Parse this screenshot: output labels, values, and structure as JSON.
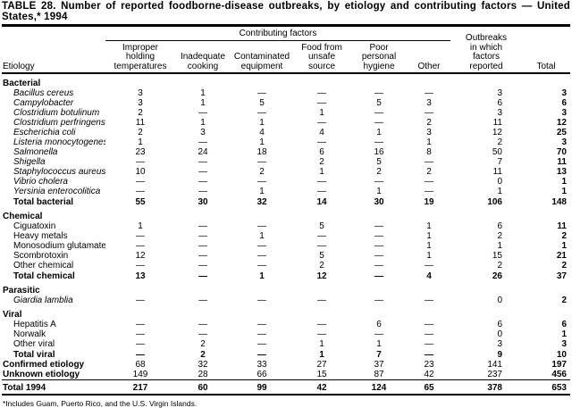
{
  "title": {
    "line1": "TABLE 28. Number of reported foodborne-disease outbreaks, by etiology and contributing factors — United",
    "line2": "States,* 1994"
  },
  "table": {
    "etiology_header": "Etiology",
    "contributing_factors_label": "Contributing factors",
    "factor_columns": [
      "Improper\nholding\ntemperatures",
      "Inadequate\ncooking",
      "Contaminated\nequipment",
      "Food from\nunsafe\nsource",
      "Poor\npersonal\nhygiene",
      "Other"
    ],
    "outbreaks_header": "Outbreaks\nin which\nfactors\nreported",
    "total_header": "Total",
    "rows": [
      {
        "type": "section",
        "label": "Bacterial"
      },
      {
        "type": "item",
        "italic": true,
        "label": "Bacillus cereus",
        "values": [
          "3",
          "1",
          "—",
          "—",
          "—",
          "—",
          "3",
          "3"
        ]
      },
      {
        "type": "item",
        "italic": true,
        "label": "Campylobacter",
        "values": [
          "3",
          "1",
          "5",
          "—",
          "5",
          "3",
          "6",
          "6"
        ]
      },
      {
        "type": "item",
        "italic": true,
        "label": "Clostridium botulinum",
        "values": [
          "2",
          "—",
          "—",
          "1",
          "—",
          "—",
          "3",
          "3"
        ]
      },
      {
        "type": "item",
        "italic": true,
        "label": "Clostridium perfringens",
        "values": [
          "11",
          "1",
          "1",
          "—",
          "—",
          "2",
          "11",
          "12"
        ]
      },
      {
        "type": "item",
        "italic": true,
        "label": "Escherichia coli",
        "values": [
          "2",
          "3",
          "4",
          "4",
          "1",
          "3",
          "12",
          "25"
        ]
      },
      {
        "type": "item",
        "italic": true,
        "label": "Listeria monocytogenes",
        "values": [
          "1",
          "—",
          "1",
          "—",
          "—",
          "1",
          "2",
          "3"
        ]
      },
      {
        "type": "item",
        "italic": true,
        "label": "Salmonella",
        "values": [
          "23",
          "24",
          "18",
          "6",
          "16",
          "8",
          "50",
          "70"
        ]
      },
      {
        "type": "item",
        "italic": true,
        "label": "Shigella",
        "values": [
          "—",
          "—",
          "—",
          "2",
          "5",
          "—",
          "7",
          "11"
        ]
      },
      {
        "type": "item",
        "italic": true,
        "label": "Staphylococcus aureus",
        "values": [
          "10",
          "—",
          "2",
          "1",
          "2",
          "2",
          "11",
          "13"
        ]
      },
      {
        "type": "item",
        "italic": true,
        "label": "Vibrio cholera",
        "values": [
          "—",
          "—",
          "—",
          "—",
          "—",
          "—",
          "0",
          "1"
        ]
      },
      {
        "type": "item",
        "italic": true,
        "label": "Yersinia enterocolitica",
        "values": [
          "—",
          "—",
          "1",
          "—",
          "1",
          "—",
          "1",
          "1"
        ]
      },
      {
        "type": "total",
        "label": "Total bacterial",
        "values": [
          "55",
          "30",
          "32",
          "14",
          "30",
          "19",
          "106",
          "148"
        ]
      },
      {
        "type": "section",
        "label": "Chemical"
      },
      {
        "type": "item",
        "italic": false,
        "label": "Ciguatoxin",
        "values": [
          "1",
          "—",
          "—",
          "5",
          "—",
          "1",
          "6",
          "11"
        ]
      },
      {
        "type": "item",
        "italic": false,
        "label": "Heavy metals",
        "values": [
          "—",
          "—",
          "1",
          "—",
          "—",
          "1",
          "2",
          "2"
        ]
      },
      {
        "type": "item",
        "italic": false,
        "label": "Monosodium glutamate",
        "values": [
          "—",
          "—",
          "—",
          "—",
          "—",
          "1",
          "1",
          "1"
        ]
      },
      {
        "type": "item",
        "italic": false,
        "label": "Scombrotoxin",
        "values": [
          "12",
          "—",
          "—",
          "5",
          "—",
          "1",
          "15",
          "21"
        ]
      },
      {
        "type": "item",
        "italic": false,
        "label": "Other chemical",
        "values": [
          "—",
          "—",
          "—",
          "2",
          "—",
          "—",
          "2",
          "2"
        ]
      },
      {
        "type": "total",
        "label": "Total chemical",
        "values": [
          "13",
          "—",
          "1",
          "12",
          "—",
          "4",
          "26",
          "37"
        ]
      },
      {
        "type": "section",
        "label": "Parasitic"
      },
      {
        "type": "item",
        "italic": true,
        "label": "Giardia lamblia",
        "values": [
          "—",
          "—",
          "—",
          "—",
          "—",
          "—",
          "0",
          "2"
        ]
      },
      {
        "type": "section",
        "label": "Viral"
      },
      {
        "type": "item",
        "italic": false,
        "label": "Hepatitis A",
        "values": [
          "—",
          "—",
          "—",
          "—",
          "6",
          "—",
          "6",
          "6"
        ]
      },
      {
        "type": "item",
        "italic": false,
        "label": "Norwalk",
        "values": [
          "—",
          "—",
          "—",
          "—",
          "—",
          "—",
          "0",
          "1"
        ]
      },
      {
        "type": "item",
        "italic": false,
        "label": "Other viral",
        "values": [
          "—",
          "2",
          "—",
          "1",
          "1",
          "—",
          "3",
          "3"
        ]
      },
      {
        "type": "total",
        "label": "Total viral",
        "values": [
          "—",
          "2",
          "—",
          "1",
          "7",
          "—",
          "9",
          "10"
        ]
      },
      {
        "type": "summary",
        "label": "Confirmed etiology",
        "values": [
          "68",
          "32",
          "33",
          "27",
          "37",
          "23",
          "141",
          "197"
        ]
      },
      {
        "type": "summary",
        "label": "Unknown etiology",
        "values": [
          "149",
          "28",
          "66",
          "15",
          "87",
          "42",
          "237",
          "456"
        ]
      },
      {
        "type": "grand",
        "label": "Total 1994",
        "values": [
          "217",
          "60",
          "99",
          "42",
          "124",
          "65",
          "378",
          "653"
        ]
      }
    ]
  },
  "footnote": "*Includes Guam, Puerto Rico, and the U.S. Virgin Islands."
}
